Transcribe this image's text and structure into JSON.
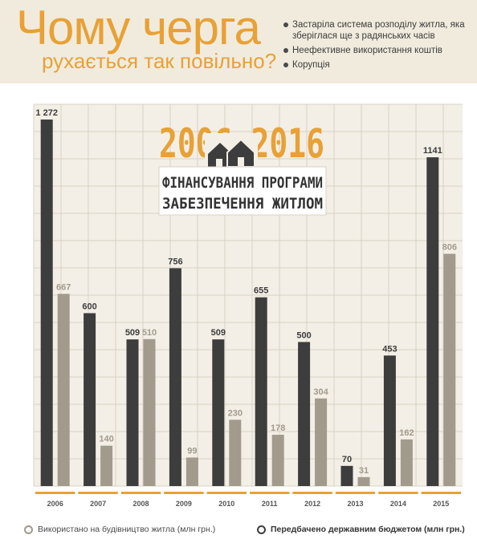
{
  "header": {
    "title_line1": "Чому черга",
    "title_line2": "рухається так повільно?",
    "bullets": [
      "Застаріла система розподілу житла, яка зберіглася ще з радянських часів",
      "Неефективне використання коштів",
      "Корупція"
    ]
  },
  "badge": {
    "years": "2006—2016",
    "line1": "ФІНАНСУВАННЯ ПРОГРАМИ",
    "line2": "ЗАБЕЗПЕЧЕННЯ ЖИТЛОМ",
    "icon": "houses-icon"
  },
  "colors": {
    "dark_bar": "#3d3d3d",
    "light_bar": "#a29a8c",
    "accent": "#e8a136",
    "grid": "#d8d2c4",
    "chart_bg": "#f3efe6"
  },
  "chart_data": {
    "type": "bar",
    "categories": [
      "2006",
      "2007",
      "2008",
      "2009",
      "2010",
      "2011",
      "2012",
      "2013",
      "2014",
      "2015"
    ],
    "series": [
      {
        "name": "Передбачено державним бюджетом (млн грн.)",
        "values": [
          1272,
          600,
          509,
          756,
          509,
          655,
          500,
          70,
          453,
          1141
        ],
        "labels": [
          "1 272",
          "600",
          "509",
          "756",
          "509",
          "655",
          "500",
          "70",
          "453",
          "1141"
        ],
        "color": "#3d3d3d"
      },
      {
        "name": "Використано на будівництво житла (млн грн.)",
        "values": [
          667,
          140,
          510,
          99,
          230,
          178,
          304,
          31,
          162,
          806
        ],
        "labels": [
          "667",
          "140",
          "510",
          "99",
          "230",
          "178",
          "304",
          "31",
          "162",
          "806"
        ],
        "color": "#a29a8c"
      }
    ],
    "ylim": [
      0,
      1325
    ],
    "grid": true,
    "legend": "bottom"
  },
  "legend": {
    "used": "Використано на будівництво житла (млн грн.)",
    "planned": "Передбачено  державним бюджетом (млн грн.)"
  }
}
